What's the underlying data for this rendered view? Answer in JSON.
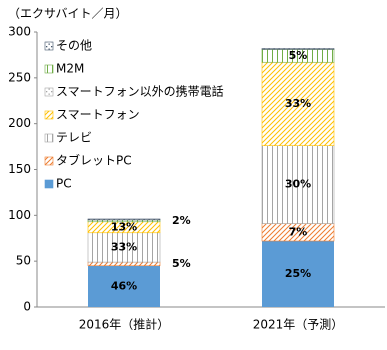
{
  "chart_data": {
    "type": "stacked_bar",
    "title": "（エクサバイト／月）",
    "categories": [
      "2016年（推計）",
      "2021年（予測）"
    ],
    "ylim": [
      0,
      300
    ],
    "yticks": [
      0,
      50,
      100,
      150,
      200,
      250,
      300
    ],
    "grid": false,
    "series": [
      {
        "name": "PC",
        "color": "#5b9bd5",
        "pattern": "solid",
        "values": [
          45,
          72
        ],
        "share_labels": [
          "46%",
          "25%"
        ]
      },
      {
        "name": "タブレットPC",
        "color": "#ed7d31",
        "pattern": "diagonal",
        "values": [
          4,
          19
        ],
        "share_labels": [
          "5%",
          "7%"
        ]
      },
      {
        "name": "テレビ",
        "color": "#a5a5a5",
        "pattern": "vertical",
        "values": [
          32,
          85
        ],
        "share_labels": [
          "33%",
          "30%"
        ]
      },
      {
        "name": "スマートフォン",
        "color": "#ffc000",
        "pattern": "diagonal",
        "values": [
          12,
          91
        ],
        "share_labels": [
          "13%",
          "33%"
        ]
      },
      {
        "name": "スマートフォン以外の携帯電話",
        "color": "#a5a5a5",
        "pattern": "dots",
        "values": [
          0,
          0
        ],
        "share_labels": [
          null,
          null
        ]
      },
      {
        "name": "M2M",
        "color": "#70ad47",
        "pattern": "vertical",
        "values": [
          2,
          14
        ],
        "share_labels": [
          "2%",
          "5%"
        ]
      },
      {
        "name": "その他",
        "color": "#44546a",
        "pattern": "dots",
        "values": [
          1,
          1
        ],
        "share_labels": [
          null,
          null
        ]
      }
    ]
  }
}
